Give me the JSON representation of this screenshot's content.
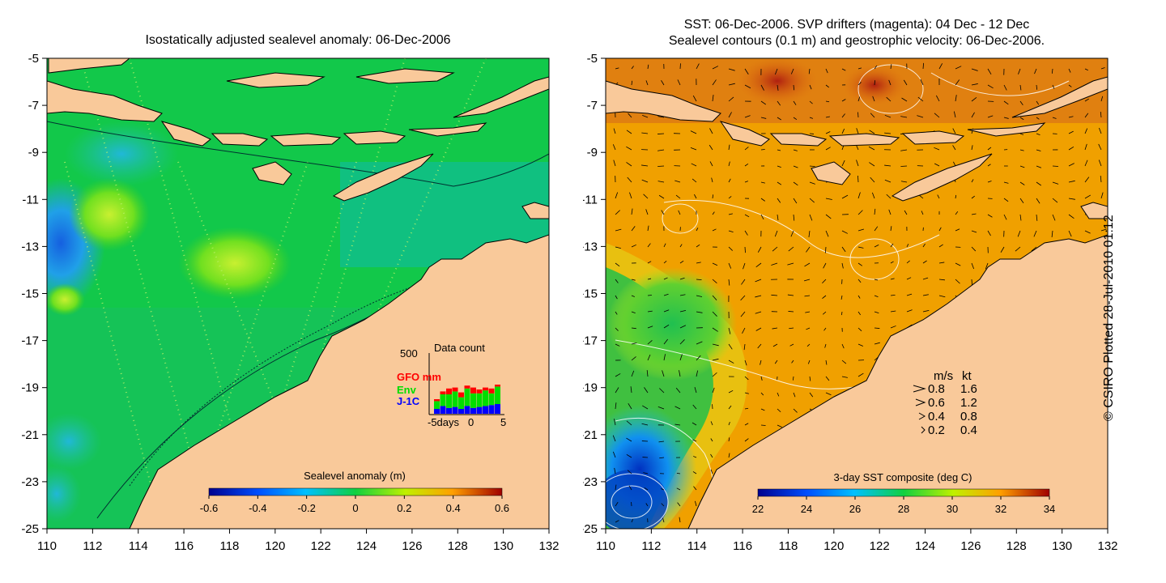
{
  "left_panel": {
    "title": "Isostatically adjusted sealevel anomaly: 06-Dec-2006",
    "lat_ticks": [
      "-5",
      "-7",
      "-9",
      "-11",
      "-13",
      "-15",
      "-17",
      "-19",
      "-21",
      "-23",
      "-25"
    ],
    "lon_ticks": [
      "110",
      "112",
      "114",
      "116",
      "118",
      "120",
      "122",
      "124",
      "126",
      "128",
      "130",
      "132"
    ],
    "colorbar": {
      "label": "Sealevel anomaly (m)",
      "ticks": [
        "-0.6",
        "-0.4",
        "-0.2",
        "0",
        "0.2",
        "0.4",
        "0.6"
      ]
    },
    "inset": {
      "title": "Data count",
      "y_max": "500",
      "legend": [
        {
          "name": "GFO mm",
          "color": "#ff0000"
        },
        {
          "name": "Env",
          "color": "#00dd00"
        },
        {
          "name": "J-1C",
          "color": "#0000ff"
        }
      ],
      "x_ticks": [
        "-5days",
        "0",
        "5"
      ]
    }
  },
  "right_panel": {
    "title_line1": "SST: 06-Dec-2006. SVP drifters (magenta): 04 Dec - 12 Dec",
    "title_line2": "Sealevel contours (0.1 m) and geostrophic velocity: 06-Dec-2006.",
    "lat_ticks": [
      "-5",
      "-7",
      "-9",
      "-11",
      "-13",
      "-15",
      "-17",
      "-19",
      "-21",
      "-23",
      "-25"
    ],
    "lon_ticks": [
      "110",
      "112",
      "114",
      "116",
      "118",
      "120",
      "122",
      "124",
      "126",
      "128",
      "130",
      "132"
    ],
    "speed_legend": {
      "header_ms": "m/s",
      "header_kt": "kt",
      "rows": [
        {
          "ms": "0.8",
          "kt": "1.6"
        },
        {
          "ms": "0.6",
          "kt": "1.2"
        },
        {
          "ms": "0.4",
          "kt": "0.8"
        },
        {
          "ms": "0.2",
          "kt": "0.4"
        }
      ]
    },
    "colorbar": {
      "label": "3-day SST composite (deg C)",
      "ticks": [
        "22",
        "24",
        "26",
        "28",
        "30",
        "32",
        "34"
      ]
    }
  },
  "copyright": "© CSIRO Plotted 28-Jul-2010 01:12",
  "colors": {
    "land": "#f9c99a",
    "sla_green": "#00cc44",
    "sst_orange": "#f0a000"
  }
}
